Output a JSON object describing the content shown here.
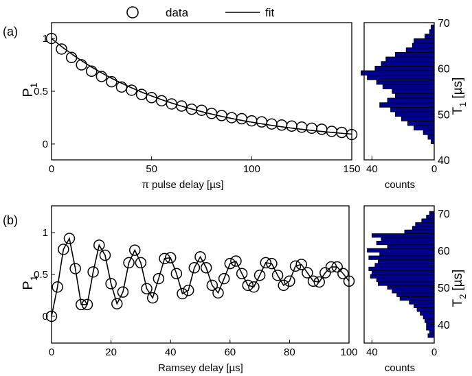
{
  "legend": {
    "placement": "top-center",
    "entries": [
      {
        "label": "data",
        "marker": "circle"
      },
      {
        "label": "fit",
        "marker": "line"
      }
    ]
  },
  "colors": {
    "axis": "#000000",
    "bar_fill": "#00008f",
    "bar_edge": "#000000",
    "fit_line": "#000000"
  },
  "chart_data": [
    {
      "id": "a_main",
      "panel_label": "(a)",
      "type": "scatter",
      "series": [
        {
          "name": "data",
          "style": "open-circle",
          "x": [
            0,
            5,
            10,
            15,
            20,
            25,
            30,
            35,
            40,
            45,
            50,
            55,
            60,
            65,
            70,
            75,
            80,
            85,
            90,
            95,
            100,
            105,
            110,
            115,
            120,
            125,
            130,
            135,
            140,
            145,
            150
          ],
          "y": [
            1.0,
            0.9,
            0.82,
            0.75,
            0.69,
            0.64,
            0.59,
            0.54,
            0.51,
            0.47,
            0.44,
            0.41,
            0.38,
            0.36,
            0.33,
            0.32,
            0.29,
            0.27,
            0.25,
            0.24,
            0.22,
            0.21,
            0.19,
            0.18,
            0.17,
            0.16,
            0.15,
            0.14,
            0.12,
            0.11,
            0.09
          ]
        },
        {
          "name": "fit",
          "style": "line",
          "model": "exponential",
          "amplitude": 1.0,
          "tau": 63.5,
          "offset": 0.0
        }
      ],
      "xlabel": "π pulse delay [µs]",
      "ylabel": "P",
      "ylabel_sub": "1",
      "xlim": [
        0,
        150
      ],
      "ylim": [
        -0.15,
        1.15
      ],
      "xticks": [
        0,
        50,
        100,
        150
      ],
      "yticks": [
        0,
        0.5,
        1
      ],
      "ytick_labels": [
        "0",
        "0.5",
        "1"
      ],
      "grid": false
    },
    {
      "id": "a_hist",
      "type": "bar",
      "orientation": "horizontal",
      "bin_width": 1,
      "bins": [
        44,
        45,
        46,
        47,
        48,
        49,
        50,
        51,
        52,
        53,
        54,
        55,
        56,
        57,
        58,
        59,
        60,
        61,
        62,
        63,
        64,
        65,
        66,
        67,
        68,
        69
      ],
      "counts": [
        2,
        4,
        7,
        13,
        17,
        21,
        25,
        28,
        35,
        30,
        25,
        27,
        33,
        37,
        43,
        47,
        38,
        34,
        31,
        25,
        18,
        14,
        13,
        6,
        3,
        2
      ],
      "xlabel": "counts",
      "xlim": [
        45,
        0
      ],
      "xticks": [
        40,
        0
      ],
      "ylabel": "T",
      "ylabel_sub": "1",
      "ylabel_unit": "[µs]",
      "ylim": [
        40,
        70
      ],
      "yticks": [
        40,
        50,
        60,
        70
      ]
    },
    {
      "id": "b_main",
      "panel_label": "(b)",
      "type": "scatter",
      "series": [
        {
          "name": "data",
          "style": "open-circle",
          "x": [
            0,
            2,
            4,
            6,
            8,
            10,
            12,
            14,
            16,
            18,
            20,
            22,
            24,
            26,
            28,
            30,
            32,
            34,
            36,
            38,
            40,
            42,
            44,
            46,
            48,
            50,
            52,
            54,
            56,
            58,
            60,
            62,
            64,
            66,
            68,
            70,
            72,
            74,
            76,
            78,
            80,
            82,
            84,
            86,
            88,
            90,
            92,
            94,
            96,
            98,
            100
          ],
          "y": [
            0.0,
            0.35,
            0.8,
            0.93,
            0.57,
            0.14,
            0.14,
            0.53,
            0.85,
            0.73,
            0.39,
            0.15,
            0.29,
            0.64,
            0.79,
            0.64,
            0.33,
            0.22,
            0.45,
            0.69,
            0.7,
            0.51,
            0.27,
            0.31,
            0.58,
            0.71,
            0.58,
            0.37,
            0.28,
            0.45,
            0.63,
            0.66,
            0.51,
            0.37,
            0.35,
            0.49,
            0.64,
            0.63,
            0.49,
            0.37,
            0.42,
            0.6,
            0.62,
            0.52,
            0.42,
            0.41,
            0.52,
            0.59,
            0.59,
            0.51,
            0.42
          ]
        },
        {
          "name": "fit",
          "style": "line",
          "model": "damped-cosine",
          "mean": 0.5,
          "amplitude": 0.5,
          "period": 11.1,
          "tau": 45.0
        }
      ],
      "xlabel": "Ramsey delay [µs]",
      "ylabel": "P",
      "ylabel_sub": "1",
      "xlim": [
        0,
        100
      ],
      "ylim": [
        -0.32,
        1.32
      ],
      "xticks": [
        0,
        20,
        40,
        60,
        80,
        100
      ],
      "yticks": [
        0,
        0.5,
        1
      ],
      "ytick_labels": [
        "0",
        "0.5",
        "1"
      ],
      "grid": false
    },
    {
      "id": "b_hist",
      "type": "bar",
      "orientation": "horizontal",
      "bin_width": 1,
      "bins": [
        37,
        38,
        39,
        40,
        41,
        42,
        43,
        44,
        45,
        46,
        47,
        48,
        49,
        50,
        51,
        52,
        53,
        54,
        55,
        56,
        57,
        58,
        59,
        60,
        61,
        62,
        63,
        64,
        65,
        66,
        67,
        68,
        69,
        70
      ],
      "counts": [
        4,
        3,
        5,
        5,
        6,
        7,
        9,
        11,
        13,
        16,
        22,
        24,
        27,
        30,
        36,
        37,
        41,
        40,
        42,
        38,
        36,
        42,
        35,
        43,
        30,
        37,
        34,
        40,
        19,
        14,
        12,
        8,
        5,
        3
      ],
      "xlabel": "counts",
      "xlim": [
        45,
        0
      ],
      "xticks": [
        40,
        0
      ],
      "ylabel": "T",
      "ylabel_sub": "2",
      "ylabel_unit": "[µs]",
      "ylim": [
        35,
        72
      ],
      "yticks": [
        40,
        50,
        60,
        70
      ]
    }
  ]
}
